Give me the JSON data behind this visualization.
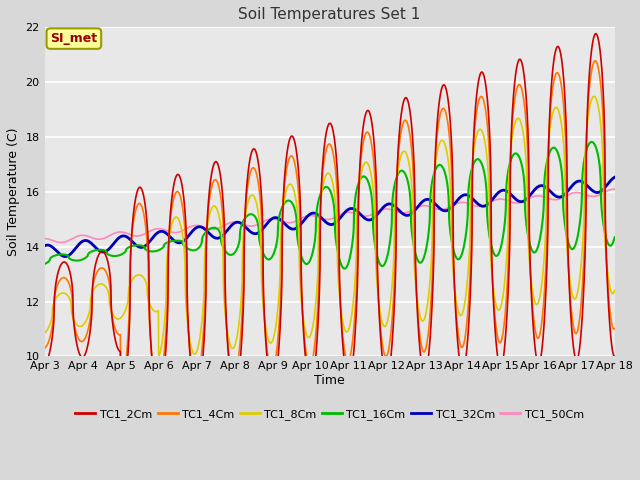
{
  "title": "Soil Temperatures Set 1",
  "xlabel": "Time",
  "ylabel": "Soil Temperature (C)",
  "ylim": [
    10,
    22
  ],
  "xlim": [
    0,
    15
  ],
  "fig_bg": "#d8d8d8",
  "ax_bg": "#e8e8e8",
  "annotation_text": "SI_met",
  "annotation_bg": "#ffff99",
  "annotation_border": "#999900",
  "annotation_text_color": "#990000",
  "tick_labels": [
    "Apr 3",
    "Apr 4",
    "Apr 5",
    "Apr 6",
    "Apr 7",
    "Apr 8",
    "Apr 9",
    "Apr 10",
    "Apr 11",
    "Apr 12",
    "Apr 13",
    "Apr 14",
    "Apr 15",
    "Apr 16",
    "Apr 17",
    "Apr 18"
  ],
  "series_colors": [
    "#cc0000",
    "#ff7700",
    "#ddcc00",
    "#00bb00",
    "#0000bb",
    "#ff88bb"
  ],
  "series_names": [
    "TC1_2Cm",
    "TC1_4Cm",
    "TC1_8Cm",
    "TC1_16Cm",
    "TC1_32Cm",
    "TC1_50Cm"
  ],
  "series_linewidths": [
    1.2,
    1.2,
    1.2,
    1.5,
    2.0,
    1.2
  ]
}
